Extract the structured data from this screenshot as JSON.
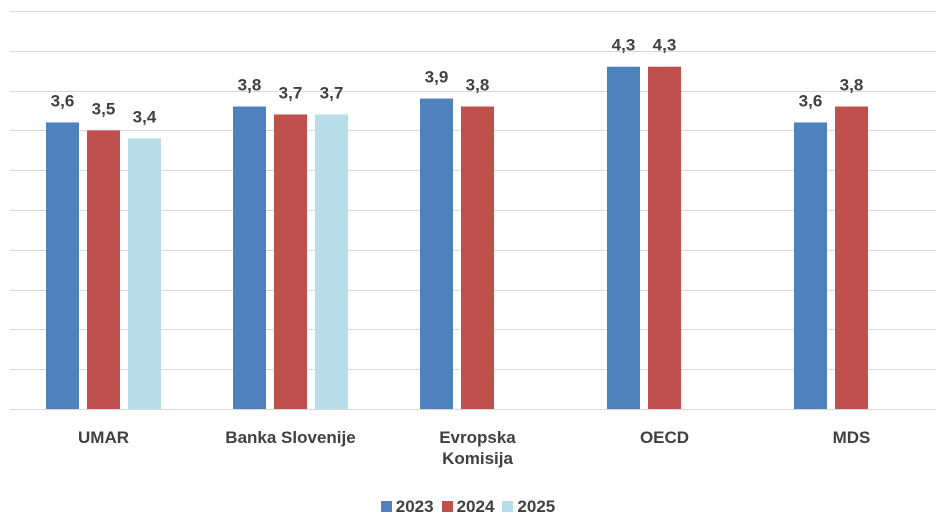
{
  "chart_data": {
    "type": "bar",
    "categories": [
      "UMAR",
      "Banka Slovenije",
      "Evropska\nKomisija",
      "OECD",
      "MDS"
    ],
    "series": [
      {
        "name": "2023",
        "color": "#4f81bd",
        "values": [
          3.6,
          3.8,
          3.9,
          4.3,
          3.6
        ],
        "value_labels": [
          "3,6",
          "3,8",
          "3,9",
          "4,3",
          "3,6"
        ]
      },
      {
        "name": "2024",
        "color": "#c0504d",
        "values": [
          3.5,
          3.7,
          3.8,
          4.3,
          3.8
        ],
        "value_labels": [
          "3,5",
          "3,7",
          "3,8",
          "4,3",
          "3,8"
        ]
      },
      {
        "name": "2025",
        "color": "#b7dde8",
        "values": [
          3.4,
          3.7,
          null,
          null,
          null
        ],
        "value_labels": [
          "3,4",
          "3,7",
          null,
          null,
          null
        ]
      }
    ],
    "ylim": [
      0,
      5
    ],
    "yticks": [
      0,
      0.5,
      1,
      1.5,
      2,
      2.5,
      3,
      3.5,
      4,
      4.5,
      5
    ],
    "grid": true,
    "legend": "bottom"
  }
}
